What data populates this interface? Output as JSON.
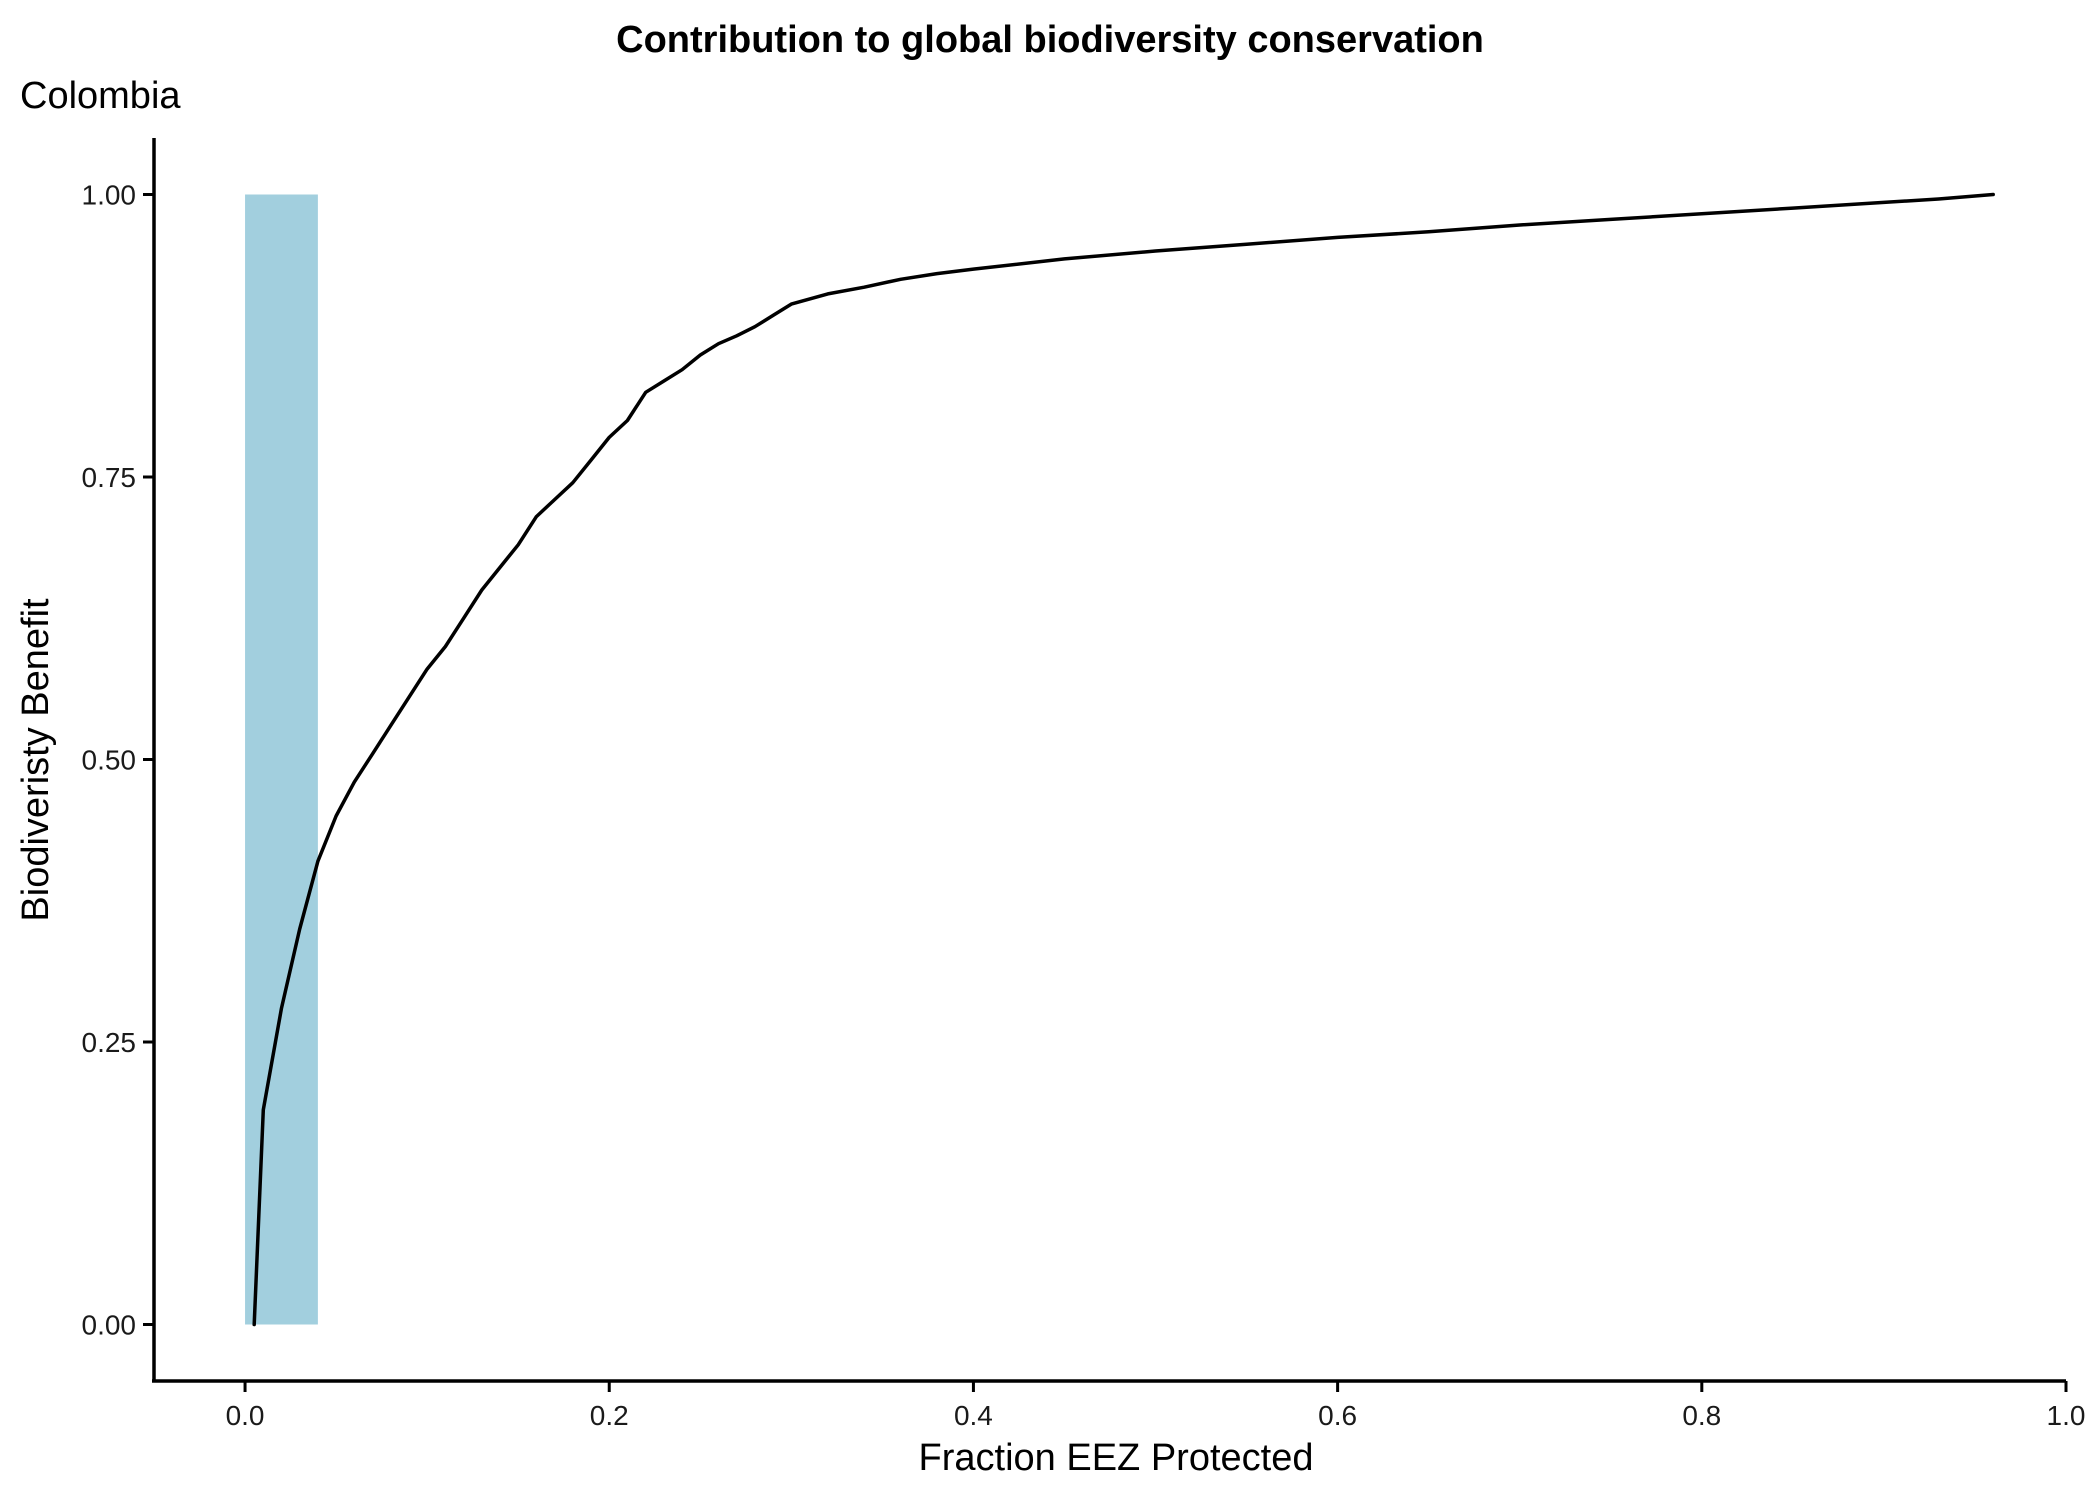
{
  "chart_data": {
    "type": "line",
    "title": "Contribution to global biodiversity conservation",
    "subtitle": "Colombia",
    "xlabel": "Fraction EEZ Protected",
    "ylabel": "Biodiveristy Benefit",
    "xlim": [
      -0.05,
      1.0
    ],
    "ylim": [
      -0.05,
      1.05
    ],
    "x_ticks": [
      0.0,
      0.2,
      0.4,
      0.6,
      0.8,
      1.0
    ],
    "x_tick_labels": [
      "0.0",
      "0.2",
      "0.4",
      "0.6",
      "0.8",
      "1.0"
    ],
    "y_ticks": [
      0.0,
      0.25,
      0.5,
      0.75,
      1.0
    ],
    "y_tick_labels": [
      "0.00",
      "0.25",
      "0.50",
      "0.75",
      "1.00"
    ],
    "grid": false,
    "highlight_band": {
      "x": [
        0.0,
        0.04
      ],
      "y": [
        0.0,
        1.0
      ],
      "color": "#a2cfde"
    },
    "series": [
      {
        "color": "#000000",
        "x": [
          0.005,
          0.01,
          0.02,
          0.03,
          0.04,
          0.05,
          0.06,
          0.07,
          0.08,
          0.09,
          0.1,
          0.11,
          0.12,
          0.13,
          0.14,
          0.15,
          0.16,
          0.17,
          0.18,
          0.19,
          0.2,
          0.21,
          0.22,
          0.23,
          0.24,
          0.25,
          0.26,
          0.27,
          0.28,
          0.29,
          0.3,
          0.32,
          0.34,
          0.36,
          0.38,
          0.4,
          0.45,
          0.5,
          0.55,
          0.6,
          0.65,
          0.7,
          0.75,
          0.8,
          0.85,
          0.9,
          0.93,
          0.96
        ],
        "y": [
          0.0,
          0.19,
          0.28,
          0.35,
          0.41,
          0.45,
          0.48,
          0.505,
          0.53,
          0.555,
          0.58,
          0.6,
          0.625,
          0.65,
          0.67,
          0.69,
          0.715,
          0.73,
          0.745,
          0.765,
          0.785,
          0.8,
          0.825,
          0.835,
          0.845,
          0.858,
          0.868,
          0.875,
          0.883,
          0.893,
          0.903,
          0.912,
          0.918,
          0.925,
          0.93,
          0.934,
          0.943,
          0.95,
          0.956,
          0.962,
          0.967,
          0.973,
          0.978,
          0.983,
          0.988,
          0.993,
          0.996,
          1.0
        ]
      }
    ]
  }
}
